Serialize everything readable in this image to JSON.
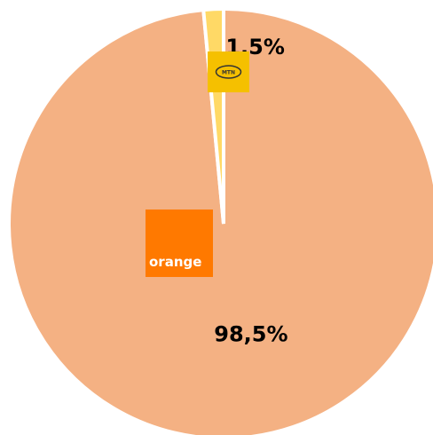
{
  "chart_data": {
    "type": "pie",
    "categories": [
      "orange",
      "MTN"
    ],
    "values": [
      98.5,
      1.5
    ],
    "value_labels": [
      "98,5%",
      "1,5%"
    ],
    "colors": [
      "#f4b183",
      "#ffd966"
    ]
  }
}
